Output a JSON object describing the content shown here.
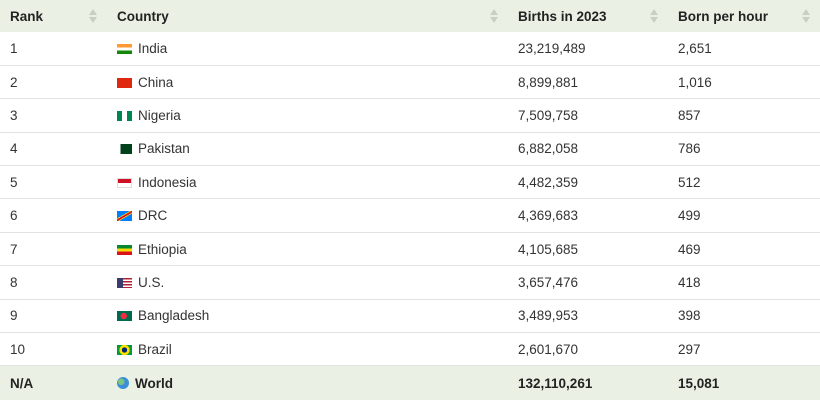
{
  "table": {
    "header": [
      "Rank",
      "Country",
      "Births in 2023",
      "Born per hour"
    ],
    "rows": [
      [
        "1",
        "India",
        "23,219,489",
        "2,651"
      ],
      [
        "2",
        "China",
        "8,899,881",
        "1,016"
      ],
      [
        "3",
        "Nigeria",
        "7,509,758",
        "857"
      ],
      [
        "4",
        "Pakistan",
        "6,882,058",
        "786"
      ],
      [
        "5",
        "Indonesia",
        "4,482,359",
        "512"
      ],
      [
        "6",
        "DRC",
        "4,369,683",
        "499"
      ],
      [
        "7",
        "Ethiopia",
        "4,105,685",
        "469"
      ],
      [
        "8",
        "U.S.",
        "3,657,476",
        "418"
      ],
      [
        "9",
        "Bangladesh",
        "3,489,953",
        "398"
      ],
      [
        "10",
        "Brazil",
        "2,601,670",
        "297"
      ]
    ],
    "footer": [
      "N/A",
      "World",
      "132,110,261",
      "15,081"
    ]
  }
}
